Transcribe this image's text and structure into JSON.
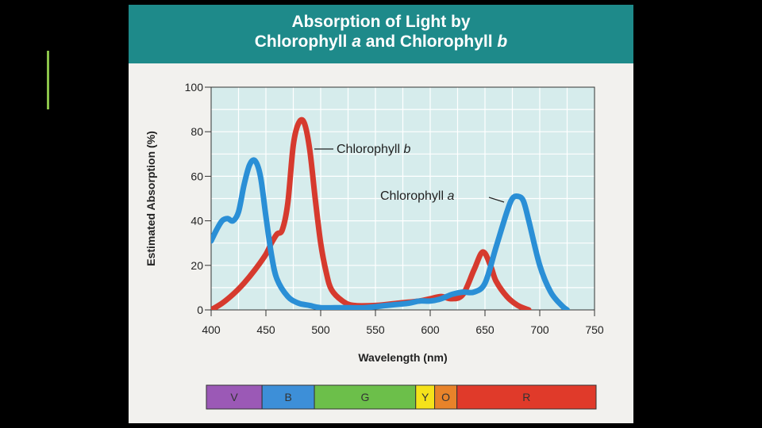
{
  "chart_data": {
    "type": "line",
    "title": {
      "line1": "Absorption of Light by",
      "line2_parts": [
        {
          "text": "Chlorophyll ",
          "italic": false
        },
        {
          "text": "a",
          "italic": true
        },
        {
          "text": " and Chlorophyll ",
          "italic": false
        },
        {
          "text": "b",
          "italic": true
        }
      ]
    },
    "xlabel": "Wavelength (nm)",
    "ylabel": "Estimated Absorption (%)",
    "xlim": [
      400,
      750
    ],
    "ylim": [
      0,
      100
    ],
    "x_ticks": [
      "400",
      "450",
      "500",
      "550",
      "600",
      "650",
      "700",
      "750"
    ],
    "y_ticks": [
      "0",
      "20",
      "40",
      "60",
      "80",
      "100"
    ],
    "grid": true,
    "series": [
      {
        "name": "Chlorophyll b",
        "label_parts": [
          "Chlorophyll ",
          "b"
        ],
        "color": "#d63a2e",
        "points": [
          [
            400,
            0
          ],
          [
            410,
            3
          ],
          [
            420,
            7
          ],
          [
            430,
            12
          ],
          [
            440,
            18
          ],
          [
            450,
            25
          ],
          [
            455,
            30
          ],
          [
            460,
            34
          ],
          [
            465,
            36
          ],
          [
            470,
            48
          ],
          [
            475,
            74
          ],
          [
            480,
            84
          ],
          [
            485,
            84
          ],
          [
            490,
            72
          ],
          [
            495,
            50
          ],
          [
            500,
            30
          ],
          [
            505,
            17
          ],
          [
            510,
            9
          ],
          [
            520,
            4
          ],
          [
            530,
            2
          ],
          [
            550,
            2
          ],
          [
            570,
            3
          ],
          [
            590,
            4
          ],
          [
            600,
            5
          ],
          [
            610,
            6
          ],
          [
            620,
            5
          ],
          [
            630,
            7
          ],
          [
            640,
            18
          ],
          [
            648,
            26
          ],
          [
            655,
            20
          ],
          [
            660,
            13
          ],
          [
            670,
            6
          ],
          [
            680,
            2
          ],
          [
            690,
            0
          ]
        ]
      },
      {
        "name": "Chlorophyll a",
        "label_parts": [
          "Chlorophyll ",
          "a"
        ],
        "color": "#2a8fd6",
        "points": [
          [
            400,
            31
          ],
          [
            405,
            36
          ],
          [
            410,
            40
          ],
          [
            415,
            41
          ],
          [
            420,
            40
          ],
          [
            425,
            44
          ],
          [
            430,
            56
          ],
          [
            435,
            65
          ],
          [
            440,
            67
          ],
          [
            445,
            60
          ],
          [
            450,
            42
          ],
          [
            455,
            25
          ],
          [
            460,
            14
          ],
          [
            470,
            6
          ],
          [
            480,
            3
          ],
          [
            490,
            2
          ],
          [
            500,
            1
          ],
          [
            520,
            1
          ],
          [
            540,
            1
          ],
          [
            560,
            2
          ],
          [
            580,
            3
          ],
          [
            590,
            4
          ],
          [
            600,
            4
          ],
          [
            610,
            5
          ],
          [
            620,
            7
          ],
          [
            630,
            8
          ],
          [
            640,
            8
          ],
          [
            650,
            12
          ],
          [
            660,
            28
          ],
          [
            670,
            44
          ],
          [
            675,
            50
          ],
          [
            680,
            51
          ],
          [
            685,
            49
          ],
          [
            690,
            40
          ],
          [
            700,
            20
          ],
          [
            710,
            8
          ],
          [
            720,
            2
          ],
          [
            725,
            0
          ]
        ]
      }
    ],
    "annotations": [
      {
        "series": "Chlorophyll b",
        "parts": [
          "Chlorophyll ",
          "b"
        ]
      },
      {
        "series": "Chlorophyll a",
        "parts": [
          "Chlorophyll ",
          "a"
        ]
      }
    ],
    "spectrum_bar": {
      "segments": [
        {
          "label": "V",
          "start": 400,
          "end": 450,
          "color": "#9b59b6"
        },
        {
          "label": "B",
          "start": 450,
          "end": 497,
          "color": "#3d8fd8"
        },
        {
          "label": "G",
          "start": 497,
          "end": 588,
          "color": "#6cbf4a"
        },
        {
          "label": "Y",
          "start": 588,
          "end": 605,
          "color": "#f5e21a"
        },
        {
          "label": "O",
          "start": 605,
          "end": 625,
          "color": "#e8832a"
        },
        {
          "label": "R",
          "start": 625,
          "end": 750,
          "color": "#e03a2a"
        }
      ]
    },
    "colors": {
      "plot_background": "#d6ecec",
      "grid": "#ffffff",
      "title_band": "#1e8a8a",
      "page_background": "#f2f1ee"
    }
  }
}
